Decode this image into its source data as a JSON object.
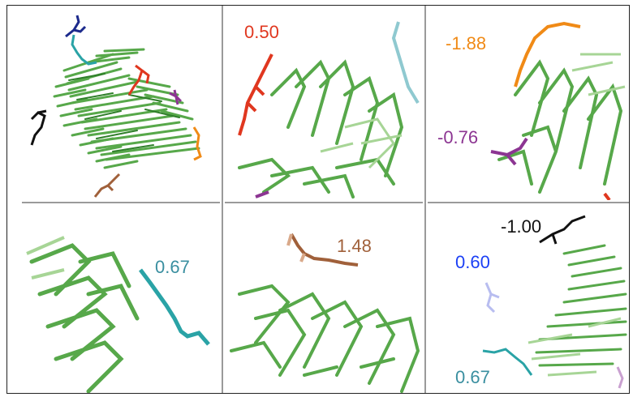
{
  "colors": {
    "green": "#57a84a",
    "green_dark": "#2f7f2a",
    "green_light": "#a7d596",
    "divider": "#9a9a9a",
    "navy": "#1c2a8c",
    "teal": "#2aa3a6",
    "red": "#e0371f",
    "purple": "#8c3592",
    "orange": "#f08a16",
    "brown": "#a0603a",
    "black": "#111111",
    "blue": "#1b3ff5"
  },
  "labels": {
    "red_value": "0.50",
    "orange_value": "-1.88",
    "purple_value": "-0.76",
    "teal_value_middle": "0.67",
    "brown_value": "1.48",
    "black_value": "-1.00",
    "blue_value": "0.60",
    "teal_value_bottom": "0.67"
  }
}
